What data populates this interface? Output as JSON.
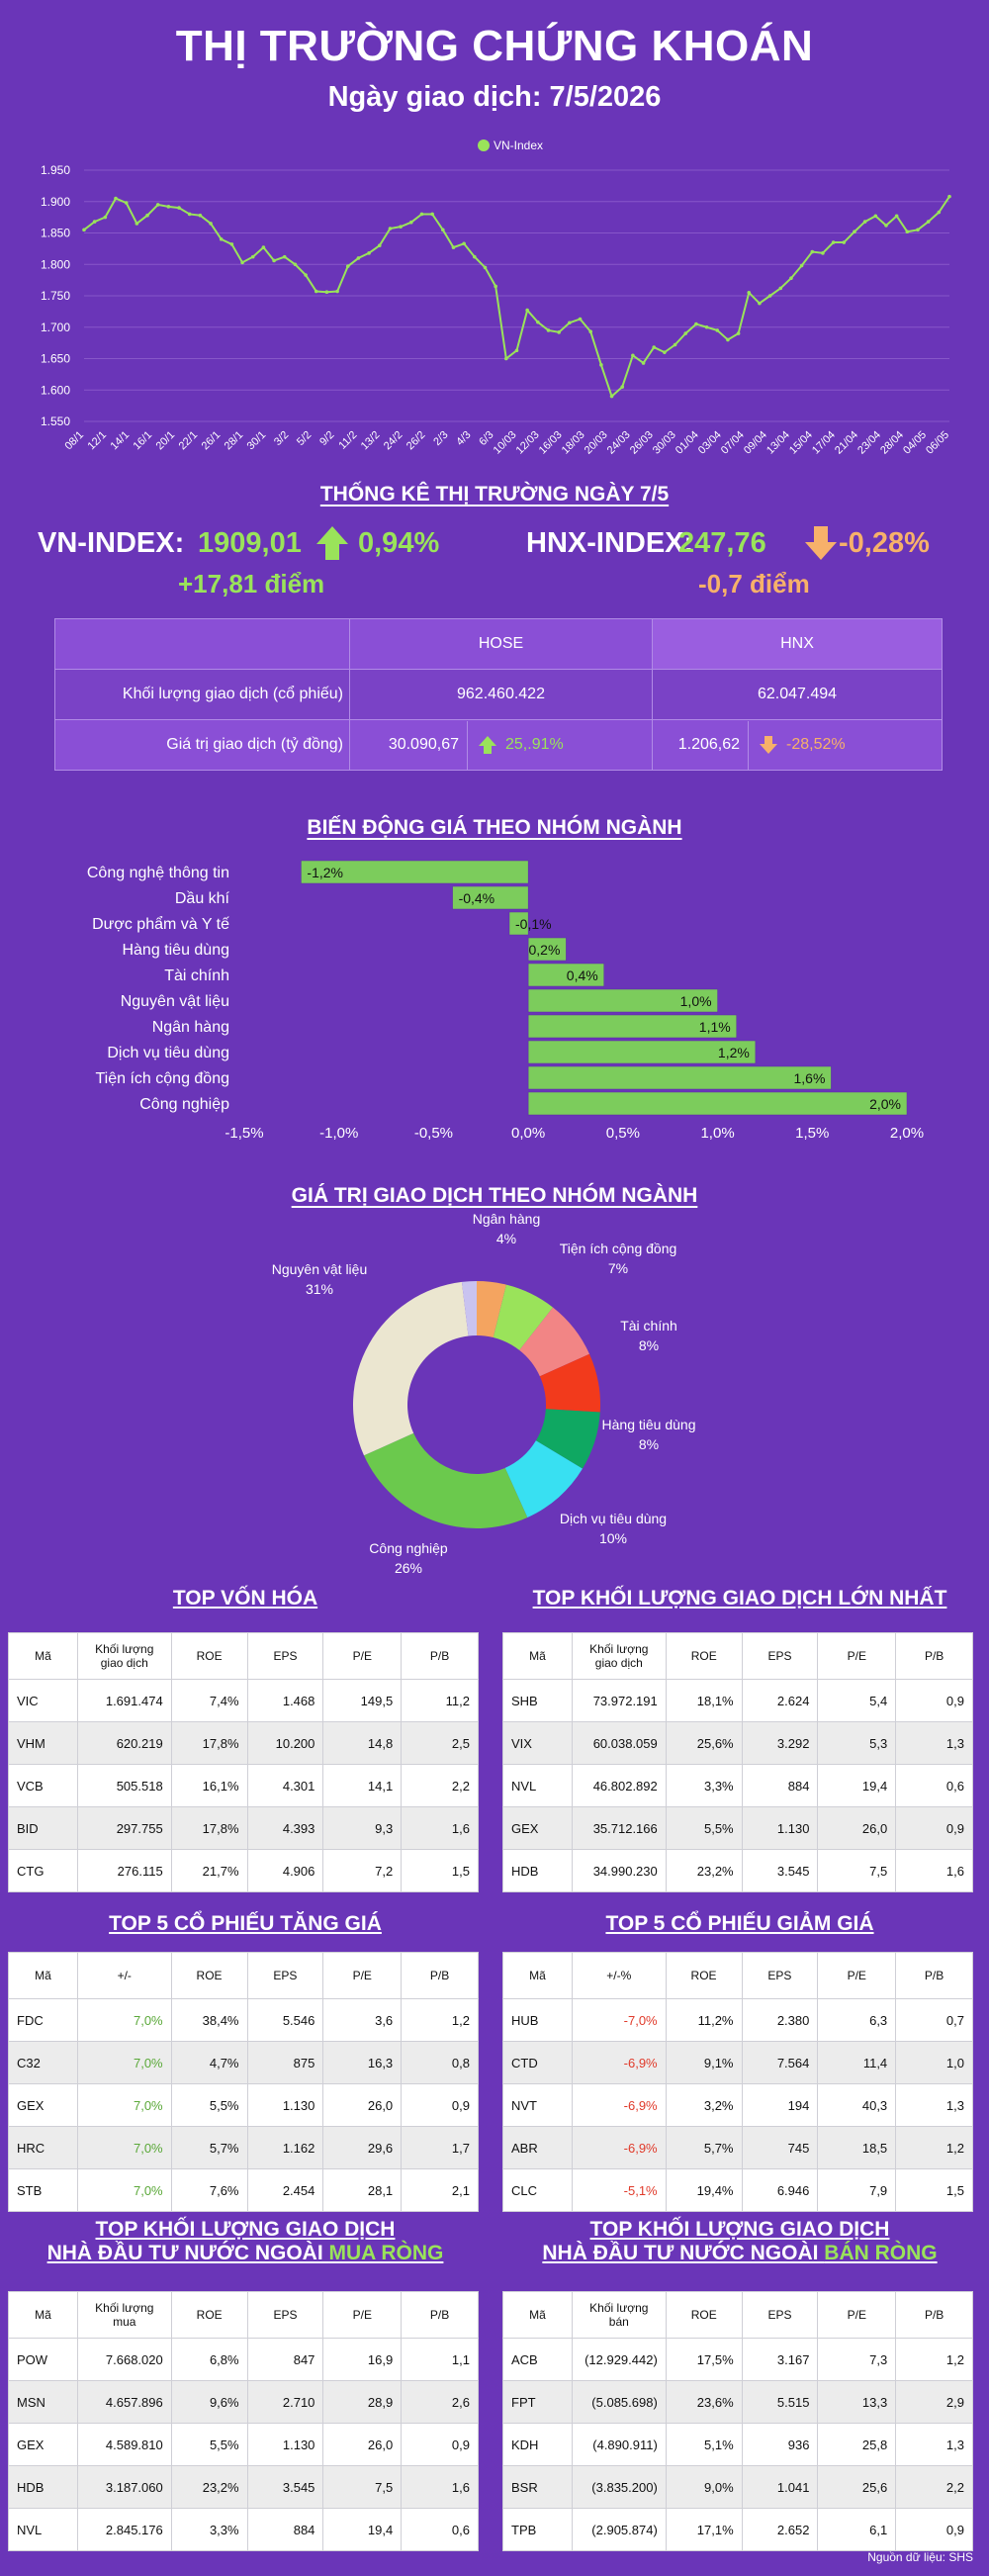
{
  "header": {
    "title": "THỊ TRƯỜNG CHỨNG KHOÁN",
    "date": "Ngày giao dịch: 7/5/2026"
  },
  "vnindex_chart": {
    "type": "line",
    "legend": "VN-Index",
    "y_ticks": [
      "1.950",
      "1.900",
      "1.850",
      "1.800",
      "1.750",
      "1.700",
      "1.650",
      "1.600",
      "1.550"
    ],
    "ylim": [
      1550,
      1950
    ],
    "x_labels": [
      "08/1",
      "12/1",
      "14/1",
      "16/1",
      "20/1",
      "22/1",
      "26/1",
      "28/1",
      "30/1",
      "3/2",
      "5/2",
      "9/2",
      "11/2",
      "13/2",
      "24/2",
      "26/2",
      "2/3",
      "4/3",
      "6/3",
      "10/03",
      "12/03",
      "16/03",
      "18/03",
      "20/03",
      "24/03",
      "26/03",
      "30/03",
      "01/04",
      "03/04",
      "07/04",
      "09/04",
      "13/04",
      "15/04",
      "17/04",
      "21/04",
      "23/04",
      "28/04",
      "04/05",
      "06/05"
    ],
    "values": [
      1855,
      1868,
      1875,
      1905,
      1898,
      1865,
      1878,
      1895,
      1892,
      1890,
      1880,
      1878,
      1865,
      1840,
      1832,
      1803,
      1812,
      1827,
      1806,
      1812,
      1800,
      1783,
      1757,
      1756,
      1757,
      1797,
      1810,
      1818,
      1830,
      1857,
      1860,
      1867,
      1880,
      1880,
      1855,
      1827,
      1833,
      1812,
      1795,
      1765,
      1650,
      1663,
      1727,
      1708,
      1695,
      1692,
      1707,
      1713,
      1693,
      1640,
      1590,
      1605,
      1655,
      1643,
      1668,
      1660,
      1672,
      1690,
      1705,
      1700,
      1695,
      1680,
      1690,
      1755,
      1738,
      1750,
      1762,
      1778,
      1798,
      1820,
      1818,
      1835,
      1835,
      1852,
      1868,
      1877,
      1862,
      1877,
      1852,
      1855,
      1868,
      1883,
      1908
    ]
  },
  "market": {
    "heading": "THỐNG KÊ THỊ TRƯỜNG NGÀY 7/5",
    "vn": {
      "label": "VN-INDEX:",
      "value": "1909,01",
      "pct": "0,94%",
      "points": "+17,81 điểm"
    },
    "hnx": {
      "label": "HNX-INDEX:",
      "value": "247,76",
      "pct": "-0,28%",
      "points": "-0,7 điểm"
    },
    "table": {
      "col_hose": "HOSE",
      "col_hnx": "HNX",
      "row1_label": "Khối lượng giao dịch (cổ phiếu)",
      "row1_hose": "962.460.422",
      "row1_hnx": "62.047.494",
      "row2_label": "Giá trị giao dịch (tỷ đồng)",
      "row2_hose": "30.090,67",
      "row2_hose_pct": "25,.91%",
      "row2_hnx": "1.206,62",
      "row2_hnx_pct": "-28,52%"
    }
  },
  "chart_data": [
    {
      "type": "bar",
      "orientation": "horizontal",
      "title": "BIẾN ĐỘNG GIÁ THEO NHÓM NGÀNH",
      "categories": [
        "Công nghệ thông tin",
        "Dầu khí",
        "Dược phẩm và Y tế",
        "Hàng tiêu dùng",
        "Tài chính",
        "Nguyên vật liệu",
        "Ngân hàng",
        "Dịch vụ tiêu dùng",
        "Tiện ích cộng đồng",
        "Công nghiệp"
      ],
      "values": [
        -1.2,
        -0.4,
        -0.1,
        0.2,
        0.4,
        1.0,
        1.1,
        1.2,
        1.6,
        2.0
      ],
      "labels": [
        "-1,2%",
        "-0,4%",
        "-0,1%",
        "0,2%",
        "0,4%",
        "1,0%",
        "1,1%",
        "1,2%",
        "1,6%",
        "2,0%"
      ],
      "xlim": [
        -1.5,
        2.0
      ],
      "x_ticks": [
        "-1,5%",
        "-1,0%",
        "-0,5%",
        "0,0%",
        "0,5%",
        "1,0%",
        "1,5%",
        "2,0%"
      ],
      "color": "#7ccc5c"
    },
    {
      "type": "pie",
      "title": "GIÁ TRỊ GIAO DỊCH THEO NHÓM NGÀNH",
      "slices": [
        {
          "name": "Ngân hàng",
          "value": 4,
          "label": "4%",
          "color": "#f4a460"
        },
        {
          "name": "Tiện ích cộng đồng",
          "value": 7,
          "label": "7%",
          "color": "#9ae35a"
        },
        {
          "name": "Tài chính",
          "value": 8,
          "label": "8%",
          "color": "#f28585"
        },
        {
          "name": "",
          "value": 8,
          "label": "",
          "color": "#f23a1c"
        },
        {
          "name": "Hàng tiêu dùng",
          "value": 8,
          "label": "8%",
          "color": "#0fa862"
        },
        {
          "name": "Dịch vụ tiêu dùng",
          "value": 10,
          "label": "10%",
          "color": "#38e0f2"
        },
        {
          "name": "Công nghiệp",
          "value": 26,
          "label": "26%",
          "color": "#6bc94d"
        },
        {
          "name": "Nguyên vật liệu",
          "value": 31,
          "label": "31%",
          "color": "#ebe6d0"
        },
        {
          "name": "",
          "value": 2,
          "label": "",
          "color": "#c9c3f0"
        }
      ]
    }
  ],
  "tables": {
    "top_cap": {
      "title": "TOP VỐN HÓA",
      "headers": [
        "Mã",
        "Khối lượng giao dịch",
        "ROE",
        "EPS",
        "P/E",
        "P/B"
      ],
      "rows": [
        [
          "VIC",
          "1.691.474",
          "7,4%",
          "1.468",
          "149,5",
          "11,2"
        ],
        [
          "VHM",
          "620.219",
          "17,8%",
          "10.200",
          "14,8",
          "2,5"
        ],
        [
          "VCB",
          "505.518",
          "16,1%",
          "4.301",
          "14,1",
          "2,2"
        ],
        [
          "BID",
          "297.755",
          "17,8%",
          "4.393",
          "9,3",
          "1,6"
        ],
        [
          "CTG",
          "276.115",
          "21,7%",
          "4.906",
          "7,2",
          "1,5"
        ]
      ]
    },
    "top_vol": {
      "title": "TOP KHỐI LƯỢNG GIAO DỊCH LỚN NHẤT",
      "headers": [
        "Mã",
        "Khối lượng giao dịch",
        "ROE",
        "EPS",
        "P/E",
        "P/B"
      ],
      "rows": [
        [
          "SHB",
          "73.972.191",
          "18,1%",
          "2.624",
          "5,4",
          "0,9"
        ],
        [
          "VIX",
          "60.038.059",
          "25,6%",
          "3.292",
          "5,3",
          "1,3"
        ],
        [
          "NVL",
          "46.802.892",
          "3,3%",
          "884",
          "19,4",
          "0,6"
        ],
        [
          "GEX",
          "35.712.166",
          "5,5%",
          "1.130",
          "26,0",
          "0,9"
        ],
        [
          "HDB",
          "34.990.230",
          "23,2%",
          "3.545",
          "7,5",
          "1,6"
        ]
      ]
    },
    "top_up": {
      "title": "TOP 5 CỔ PHIẾU TĂNG GIÁ",
      "headers": [
        "Mã",
        "+/-",
        "ROE",
        "EPS",
        "P/E",
        "P/B"
      ],
      "rows": [
        [
          "FDC",
          "7,0%",
          "38,4%",
          "5.546",
          "3,6",
          "1,2"
        ],
        [
          "C32",
          "7,0%",
          "4,7%",
          "875",
          "16,3",
          "0,8"
        ],
        [
          "GEX",
          "7,0%",
          "5,5%",
          "1.130",
          "26,0",
          "0,9"
        ],
        [
          "HRC",
          "7,0%",
          "5,7%",
          "1.162",
          "29,6",
          "1,7"
        ],
        [
          "STB",
          "7,0%",
          "7,6%",
          "2.454",
          "28,1",
          "2,1"
        ]
      ]
    },
    "top_down": {
      "title": "TOP 5 CỔ PHIẾU GIẢM GIÁ",
      "headers": [
        "Mã",
        "+/-%",
        "ROE",
        "EPS",
        "P/E",
        "P/B"
      ],
      "rows": [
        [
          "HUB",
          "-7,0%",
          "11,2%",
          "2.380",
          "6,3",
          "0,7"
        ],
        [
          "CTD",
          "-6,9%",
          "9,1%",
          "7.564",
          "11,4",
          "1,0"
        ],
        [
          "NVT",
          "-6,9%",
          "3,2%",
          "194",
          "40,3",
          "1,3"
        ],
        [
          "ABR",
          "-6,9%",
          "5,7%",
          "745",
          "18,5",
          "1,2"
        ],
        [
          "CLC",
          "-5,1%",
          "19,4%",
          "6.946",
          "7,9",
          "1,5"
        ]
      ]
    },
    "foreign_buy": {
      "title1": "TOP KHỐI LƯỢNG GIAO DỊCH",
      "title2": "NHÀ ĐẦU TƯ NƯỚC NGOÀI ",
      "title_hl": "MUA RÒNG",
      "headers": [
        "Mã",
        "Khối lượng mua",
        "ROE",
        "EPS",
        "P/E",
        "P/B"
      ],
      "rows": [
        [
          "POW",
          "7.668.020",
          "6,8%",
          "847",
          "16,9",
          "1,1"
        ],
        [
          "MSN",
          "4.657.896",
          "9,6%",
          "2.710",
          "28,9",
          "2,6"
        ],
        [
          "GEX",
          "4.589.810",
          "5,5%",
          "1.130",
          "26,0",
          "0,9"
        ],
        [
          "HDB",
          "3.187.060",
          "23,2%",
          "3.545",
          "7,5",
          "1,6"
        ],
        [
          "NVL",
          "2.845.176",
          "3,3%",
          "884",
          "19,4",
          "0,6"
        ]
      ]
    },
    "foreign_sell": {
      "title1": "TOP KHỐI LƯỢNG GIAO DỊCH",
      "title2": "NHÀ ĐẦU TƯ NƯỚC NGOÀI ",
      "title_hl": "BÁN RÒNG",
      "headers": [
        "Mã",
        "Khối lượng bán",
        "ROE",
        "EPS",
        "P/E",
        "P/B"
      ],
      "rows": [
        [
          "ACB",
          "(12.929.442)",
          "17,5%",
          "3.167",
          "7,3",
          "1,2"
        ],
        [
          "FPT",
          "(5.085.698)",
          "23,6%",
          "5.515",
          "13,3",
          "2,9"
        ],
        [
          "KDH",
          "(4.890.911)",
          "5,1%",
          "936",
          "25,8",
          "1,3"
        ],
        [
          "BSR",
          "(3.835.200)",
          "9,0%",
          "1.041",
          "25,6",
          "2,2"
        ],
        [
          "TPB",
          "(2.905.874)",
          "17,1%",
          "2.652",
          "6,1",
          "0,9"
        ]
      ]
    }
  },
  "source": "Nguồn dữ liệu: SHS",
  "colors": {
    "bg": "#6a35b8",
    "green": "#9ae35a",
    "orange": "#f7b16a",
    "up": "#5aa838",
    "down": "#e03a2a"
  }
}
